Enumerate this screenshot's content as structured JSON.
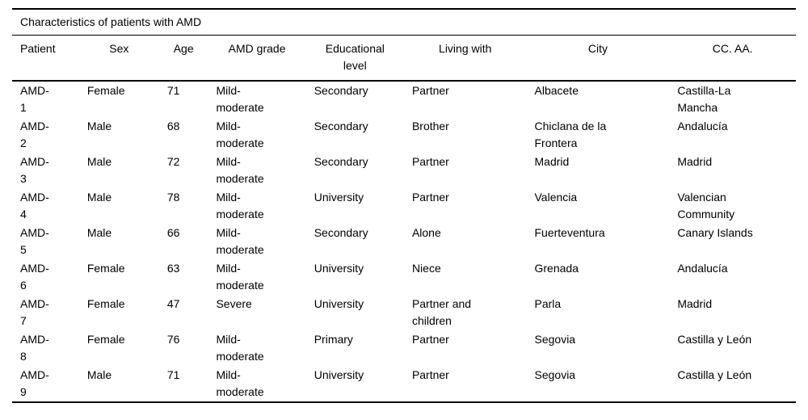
{
  "table": {
    "title": "Characteristics of patients with AMD",
    "columns": [
      "Patient",
      "Sex",
      "Age",
      "AMD grade",
      "Educational\nlevel",
      "Living with",
      "City",
      "CC. AA."
    ],
    "rows": [
      [
        "AMD-\n1",
        "Female",
        "71",
        "Mild-\nmoderate",
        "Secondary",
        "Partner",
        "Albacete",
        "Castilla-La\nMancha"
      ],
      [
        "AMD-\n2",
        "Male",
        "68",
        "Mild-\nmoderate",
        "Secondary",
        "Brother",
        "Chiclana de la\nFrontera",
        "Andalucía"
      ],
      [
        "AMD-\n3",
        "Male",
        "72",
        "Mild-\nmoderate",
        "Secondary",
        "Partner",
        "Madrid",
        "Madrid"
      ],
      [
        "AMD-\n4",
        "Male",
        "78",
        "Mild-\nmoderate",
        "University",
        "Partner",
        "Valencia",
        "Valencian\nCommunity"
      ],
      [
        "AMD-\n5",
        "Male",
        "66",
        "Mild-\nmoderate",
        "Secondary",
        "Alone",
        "Fuerteventura",
        "Canary Islands"
      ],
      [
        "AMD-\n6",
        "Female",
        "63",
        "Mild-\nmoderate",
        "University",
        "Niece",
        "Grenada",
        "Andalucía"
      ],
      [
        "AMD-\n7",
        "Female",
        "47",
        "Severe",
        "University",
        "Partner and\nchildren",
        "Parla",
        "Madrid"
      ],
      [
        "AMD-\n8",
        "Female",
        "76",
        "Mild-\nmoderate",
        "Primary",
        "Partner",
        "Segovia",
        "Castilla y León"
      ],
      [
        "AMD-\n9",
        "Male",
        "71",
        "Mild-\nmoderate",
        "University",
        "Partner",
        "Segovia",
        "Castilla y León"
      ]
    ]
  }
}
